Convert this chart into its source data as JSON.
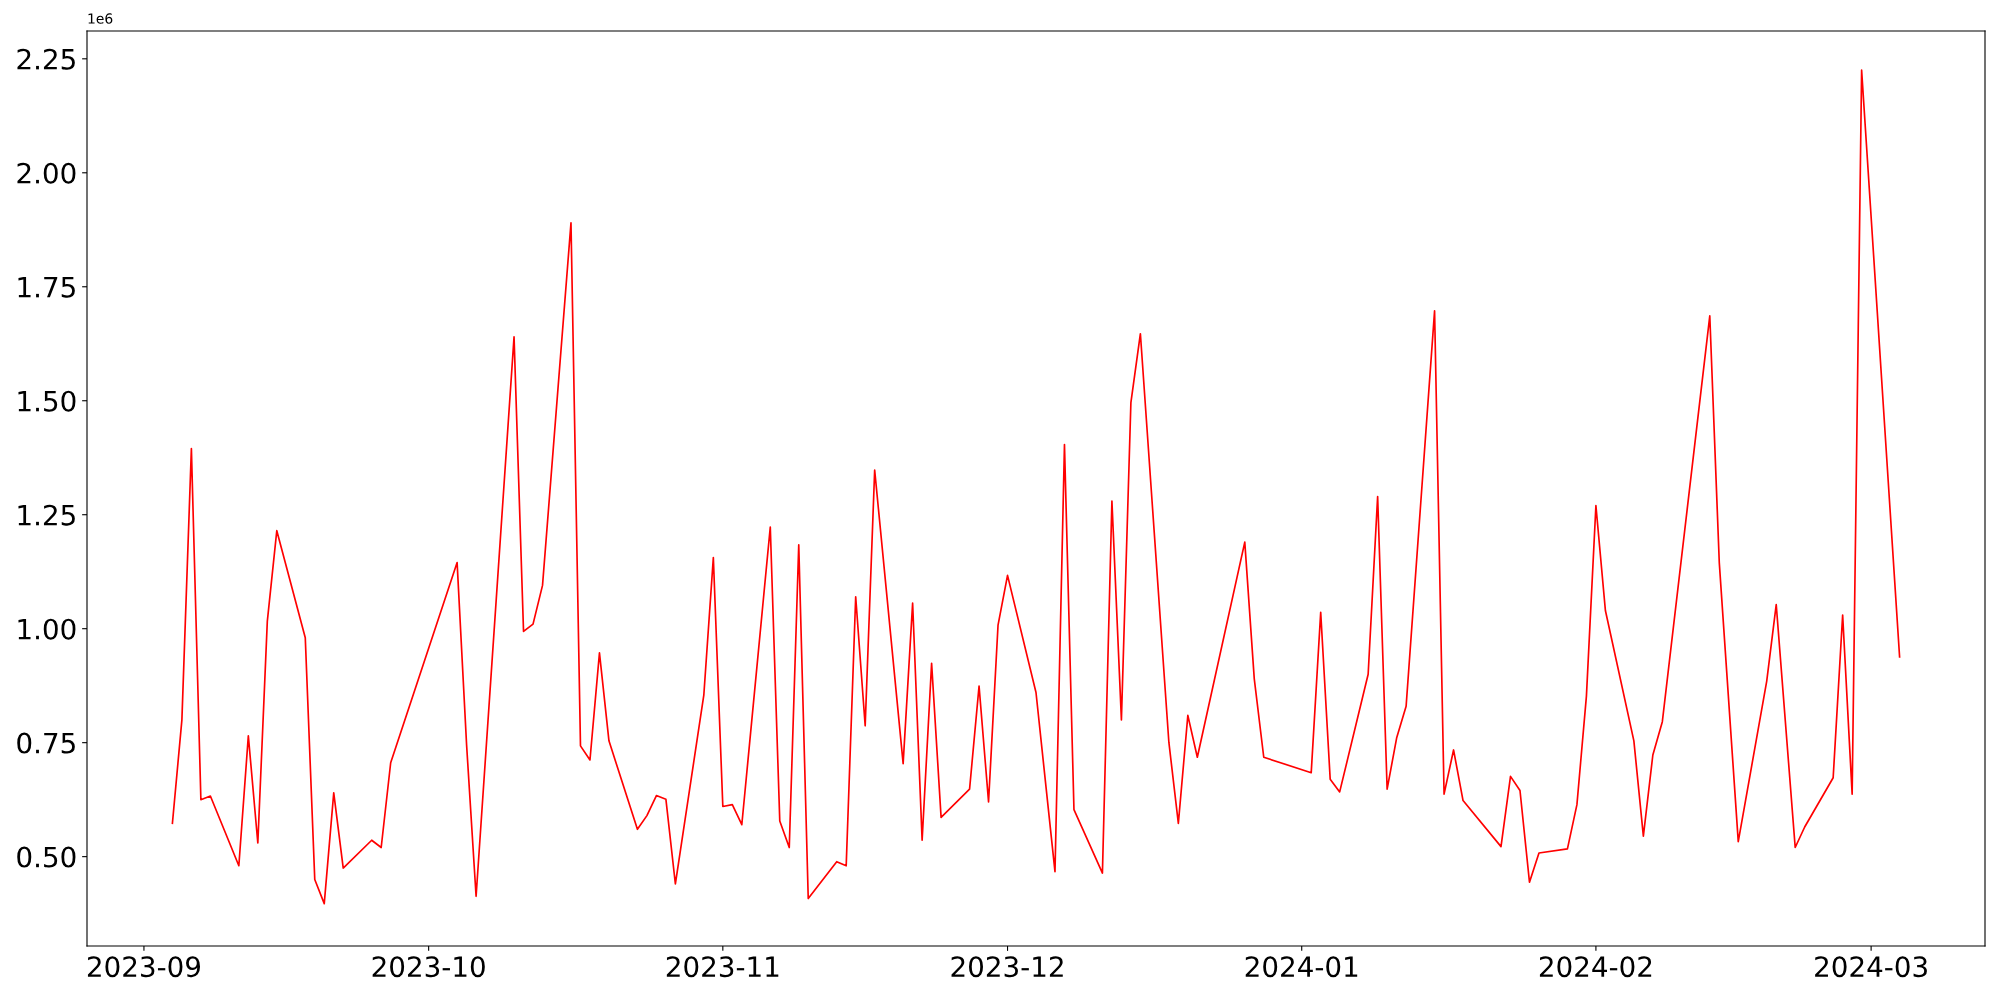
{
  "chart_data": {
    "type": "line",
    "x": [
      "2023-09-04",
      "2023-09-05",
      "2023-09-06",
      "2023-09-07",
      "2023-09-08",
      "2023-09-11",
      "2023-09-12",
      "2023-09-13",
      "2023-09-14",
      "2023-09-15",
      "2023-09-18",
      "2023-09-19",
      "2023-09-20",
      "2023-09-21",
      "2023-09-22",
      "2023-09-25",
      "2023-09-26",
      "2023-09-27",
      "2023-10-04",
      "2023-10-05",
      "2023-10-06",
      "2023-10-10",
      "2023-10-11",
      "2023-10-12",
      "2023-10-13",
      "2023-10-16",
      "2023-10-17",
      "2023-10-18",
      "2023-10-19",
      "2023-10-20",
      "2023-10-23",
      "2023-10-24",
      "2023-10-25",
      "2023-10-26",
      "2023-10-27",
      "2023-10-30",
      "2023-10-31",
      "2023-11-01",
      "2023-11-02",
      "2023-11-03",
      "2023-11-06",
      "2023-11-07",
      "2023-11-08",
      "2023-11-09",
      "2023-11-10",
      "2023-11-13",
      "2023-11-14",
      "2023-11-15",
      "2023-11-16",
      "2023-11-17",
      "2023-11-20",
      "2023-11-21",
      "2023-11-22",
      "2023-11-23",
      "2023-11-24",
      "2023-11-27",
      "2023-11-28",
      "2023-11-29",
      "2023-11-30",
      "2023-12-01",
      "2023-12-04",
      "2023-12-06",
      "2023-12-07",
      "2023-12-08",
      "2023-12-11",
      "2023-12-12",
      "2023-12-13",
      "2023-12-14",
      "2023-12-15",
      "2023-12-18",
      "2023-12-19",
      "2023-12-20",
      "2023-12-21",
      "2023-12-26",
      "2023-12-27",
      "2023-12-28",
      "2024-01-02",
      "2024-01-03",
      "2024-01-04",
      "2024-01-05",
      "2024-01-08",
      "2024-01-09",
      "2024-01-10",
      "2024-01-11",
      "2024-01-12",
      "2024-01-15",
      "2024-01-16",
      "2024-01-17",
      "2024-01-18",
      "2024-01-22",
      "2024-01-23",
      "2024-01-24",
      "2024-01-25",
      "2024-01-26",
      "2024-01-29",
      "2024-01-30",
      "2024-01-31",
      "2024-02-01",
      "2024-02-02",
      "2024-02-05",
      "2024-02-06",
      "2024-02-07",
      "2024-02-08",
      "2024-02-13",
      "2024-02-14",
      "2024-02-16",
      "2024-02-19",
      "2024-02-20",
      "2024-02-22",
      "2024-02-23",
      "2024-02-26",
      "2024-02-27",
      "2024-02-28",
      "2024-02-29",
      "2024-03-04"
    ],
    "series": [
      {
        "color": "#ff0000",
        "values": [
          0.573,
          0.8,
          1.395,
          0.625,
          0.633,
          0.48,
          0.765,
          0.53,
          1.016,
          1.215,
          0.98,
          0.45,
          0.397,
          0.64,
          0.475,
          0.536,
          0.52,
          0.706,
          1.145,
          0.745,
          0.413,
          1.64,
          0.994,
          1.01,
          1.095,
          1.89,
          0.743,
          0.712,
          0.947,
          0.754,
          0.56,
          0.59,
          0.634,
          0.626,
          0.44,
          0.855,
          1.156,
          0.61,
          0.614,
          0.57,
          1.223,
          0.578,
          0.52,
          1.184,
          0.408,
          0.489,
          0.48,
          1.07,
          0.787,
          1.348,
          0.704,
          1.056,
          0.536,
          0.924,
          0.586,
          0.648,
          0.874,
          0.62,
          1.008,
          1.117,
          0.86,
          0.467,
          1.404,
          0.603,
          0.464,
          1.28,
          0.8,
          1.496,
          1.647,
          0.751,
          0.573,
          0.81,
          0.718,
          1.19,
          0.89,
          0.718,
          0.684,
          1.036,
          0.67,
          0.642,
          0.9,
          1.29,
          0.648,
          0.76,
          0.83,
          1.697,
          0.637,
          0.734,
          0.623,
          0.522,
          0.676,
          0.645,
          0.444,
          0.508,
          0.517,
          0.614,
          0.852,
          1.27,
          1.04,
          0.754,
          0.545,
          0.723,
          0.796,
          1.686,
          1.145,
          0.533,
          0.885,
          1.053,
          0.52,
          0.565,
          0.673,
          1.03,
          0.637,
          2.225,
          0.938
        ]
      }
    ],
    "xlim": [
      "2023-08-26",
      "2024-03-13"
    ],
    "xticks": [
      {
        "value": "2023-09-01",
        "label": "2023-09"
      },
      {
        "value": "2023-10-01",
        "label": "2023-10"
      },
      {
        "value": "2023-11-01",
        "label": "2023-11"
      },
      {
        "value": "2023-12-01",
        "label": "2023-12"
      },
      {
        "value": "2024-01-01",
        "label": "2024-01"
      },
      {
        "value": "2024-02-01",
        "label": "2024-02"
      },
      {
        "value": "2024-03-01",
        "label": "2024-03"
      }
    ],
    "ylim": [
      0.304,
      2.311
    ],
    "yticks": [
      {
        "value": 0.5,
        "label": "0.50"
      },
      {
        "value": 0.75,
        "label": "0.75"
      },
      {
        "value": 1.0,
        "label": "1.00"
      },
      {
        "value": 1.25,
        "label": "1.25"
      },
      {
        "value": 1.5,
        "label": "1.50"
      },
      {
        "value": 1.75,
        "label": "1.75"
      },
      {
        "value": 2.0,
        "label": "2.00"
      },
      {
        "value": 2.25,
        "label": "2.25"
      }
    ],
    "annotations": [
      "1e6"
    ],
    "grid": false,
    "marker": "none",
    "line_style": "solid"
  }
}
